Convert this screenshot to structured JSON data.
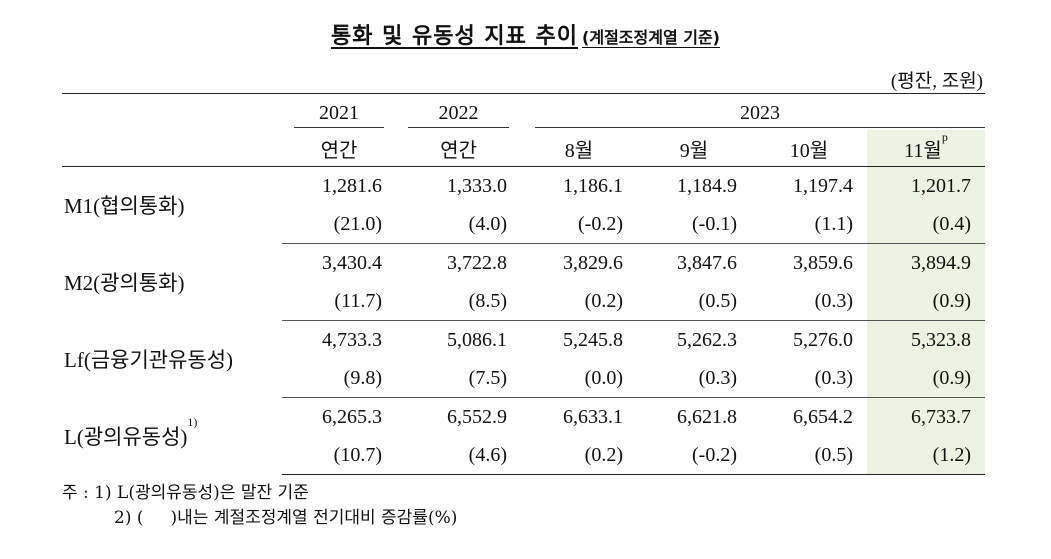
{
  "title": "통화 및 유동성 지표 추이",
  "subtitle": "(계절조정계열 기준)",
  "unit": "(평잔, 조원)",
  "header": {
    "years": [
      "2021",
      "2022",
      "2023"
    ],
    "periods": [
      "연간",
      "연간",
      "8월",
      "9월",
      "10월",
      "11월"
    ],
    "prelim_mark": "p"
  },
  "rows": [
    {
      "label": "M1(협의통화)",
      "values": [
        "1,281.6",
        "1,333.0",
        "1,186.1",
        "1,184.9",
        "1,197.4",
        "1,201.7"
      ],
      "changes": [
        "(21.0)",
        "(4.0)",
        "(-0.2)",
        "(-0.1)",
        "(1.1)",
        "(0.4)"
      ]
    },
    {
      "label": "M2(광의통화)",
      "values": [
        "3,430.4",
        "3,722.8",
        "3,829.6",
        "3,847.6",
        "3,859.6",
        "3,894.9"
      ],
      "changes": [
        "(11.7)",
        "(8.5)",
        "(0.2)",
        "(0.5)",
        "(0.3)",
        "(0.9)"
      ]
    },
    {
      "label": "Lf(금융기관유동성)",
      "values": [
        "4,733.3",
        "5,086.1",
        "5,245.8",
        "5,262.3",
        "5,276.0",
        "5,323.8"
      ],
      "changes": [
        "(9.8)",
        "(7.5)",
        "(0.0)",
        "(0.3)",
        "(0.3)",
        "(0.9)"
      ]
    },
    {
      "label": "L(광의유동성)",
      "label_sup": "1)",
      "values": [
        "6,265.3",
        "6,552.9",
        "6,633.1",
        "6,621.8",
        "6,654.2",
        "6,733.7"
      ],
      "changes": [
        "(10.7)",
        "(4.6)",
        "(0.2)",
        "(-0.2)",
        "(0.5)",
        "(1.2)"
      ]
    }
  ],
  "notes": {
    "note1": "주 : 1) L(광의유동성)은 말잔 기준",
    "note2": "2) (     )내는 계절조정계열 전기대비 증감률(%)"
  },
  "colors": {
    "highlight": "#edf3e3"
  }
}
